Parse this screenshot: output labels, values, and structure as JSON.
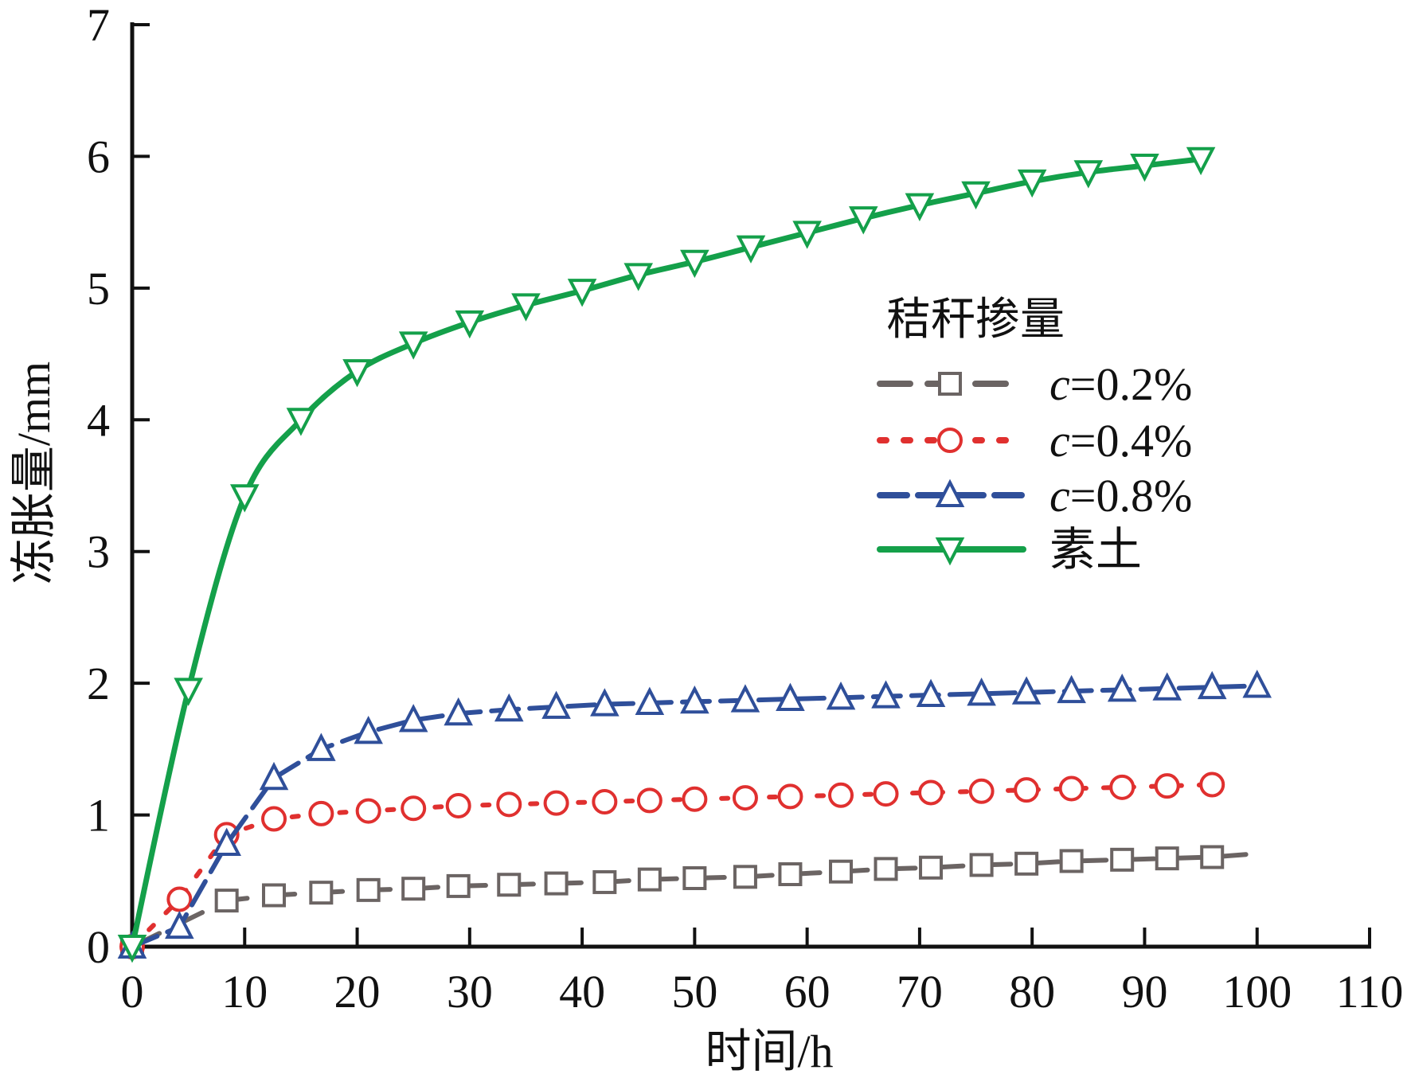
{
  "chart_data": {
    "type": "line",
    "title": "",
    "xlabel": "时间/h",
    "ylabel": "冻胀量/mm",
    "xlim": [
      0,
      110
    ],
    "ylim": [
      0,
      7
    ],
    "xticks": [
      0,
      10,
      20,
      30,
      40,
      50,
      60,
      70,
      80,
      90,
      100,
      110
    ],
    "yticks": [
      0,
      1,
      2,
      3,
      4,
      5,
      6,
      7
    ],
    "grid": false,
    "legend": {
      "title": "秸秆掺量",
      "placement": "right-middle"
    },
    "series": [
      {
        "name": "c=0.2%",
        "label_prefix": "c",
        "label_suffix": "=0.2%",
        "color": "#6b6463",
        "dash": "dash",
        "marker": "square",
        "x": [
          0,
          8.4,
          12.6,
          16.8,
          21,
          25,
          29,
          33.5,
          37.7,
          42,
          46,
          50,
          54.5,
          58.5,
          63,
          67,
          71,
          75.5,
          79.5,
          83.5,
          88,
          92,
          96,
          99
        ],
        "y": [
          0,
          0.35,
          0.39,
          0.41,
          0.43,
          0.44,
          0.46,
          0.47,
          0.48,
          0.49,
          0.51,
          0.52,
          0.53,
          0.55,
          0.57,
          0.59,
          0.6,
          0.62,
          0.63,
          0.65,
          0.66,
          0.67,
          0.68,
          0.7
        ],
        "markers_at": 23
      },
      {
        "name": "c=0.4%",
        "label_prefix": "c",
        "label_suffix": "=0.4%",
        "color": "#e0302f",
        "dash": "dot",
        "marker": "circle",
        "x": [
          0,
          4.2,
          8.4,
          12.6,
          16.8,
          21,
          25,
          29,
          33.5,
          37.7,
          42,
          46,
          50,
          54.5,
          58.5,
          63,
          67,
          71,
          75.5,
          79.5,
          83.5,
          88,
          92,
          96
        ],
        "y": [
          0,
          0.36,
          0.85,
          0.97,
          1.01,
          1.03,
          1.05,
          1.07,
          1.08,
          1.09,
          1.1,
          1.11,
          1.12,
          1.13,
          1.14,
          1.15,
          1.16,
          1.17,
          1.18,
          1.19,
          1.2,
          1.21,
          1.22,
          1.23
        ],
        "markers_at": 24
      },
      {
        "name": "c=0.8%",
        "label_prefix": "c",
        "label_suffix": "=0.8%",
        "color": "#2f4f9a",
        "dash": "dashdot",
        "marker": "triangle-up",
        "x": [
          0,
          4.2,
          8.4,
          12.6,
          16.8,
          21,
          25,
          29,
          33.5,
          37.7,
          42,
          46,
          50,
          54.5,
          58.5,
          63,
          67,
          71,
          75.5,
          79.5,
          83.5,
          88,
          92,
          96,
          100
        ],
        "y": [
          0,
          0.15,
          0.78,
          1.28,
          1.5,
          1.63,
          1.72,
          1.77,
          1.8,
          1.82,
          1.84,
          1.85,
          1.86,
          1.87,
          1.88,
          1.89,
          1.9,
          1.91,
          1.92,
          1.93,
          1.94,
          1.95,
          1.96,
          1.97,
          1.98
        ],
        "markers_at": 25
      },
      {
        "name": "素土",
        "label_prefix": "",
        "label_suffix": "素土",
        "color": "#14a04a",
        "dash": "solid",
        "marker": "triangle-down",
        "x": [
          0,
          5,
          10,
          15,
          20,
          25,
          30,
          35,
          40,
          45,
          50,
          55,
          60,
          65,
          70,
          75,
          80,
          85,
          90,
          95
        ],
        "y": [
          0,
          1.95,
          3.42,
          4.0,
          4.37,
          4.58,
          4.74,
          4.87,
          4.98,
          5.1,
          5.2,
          5.31,
          5.42,
          5.53,
          5.63,
          5.72,
          5.81,
          5.88,
          5.93,
          5.98
        ],
        "markers_at": 20
      }
    ]
  }
}
